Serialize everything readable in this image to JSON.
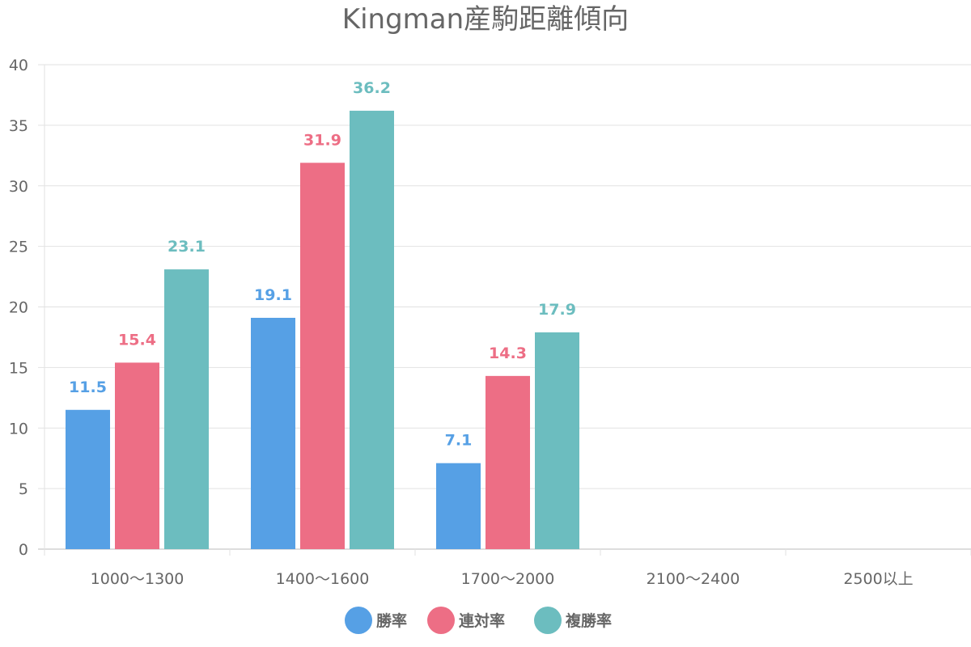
{
  "chart_data": {
    "type": "bar",
    "title": "Kingman産駒距離傾向",
    "xlabel": "",
    "ylabel": "",
    "ylim": [
      0,
      40
    ],
    "yticks": [
      0,
      5,
      10,
      15,
      20,
      25,
      30,
      35,
      40
    ],
    "grid": true,
    "legend_position": "bottom",
    "categories": [
      "1000〜1300",
      "1400〜1600",
      "1700〜2000",
      "2100〜2400",
      "2500以上"
    ],
    "series": [
      {
        "name": "勝率",
        "color": "#56a0e5",
        "values": [
          11.5,
          19.1,
          7.1,
          null,
          null
        ]
      },
      {
        "name": "連対率",
        "color": "#ed6e85",
        "values": [
          15.4,
          31.9,
          14.3,
          null,
          null
        ]
      },
      {
        "name": "複勝率",
        "color": "#6cbdbf",
        "values": [
          23.1,
          36.2,
          17.9,
          null,
          null
        ]
      }
    ]
  }
}
